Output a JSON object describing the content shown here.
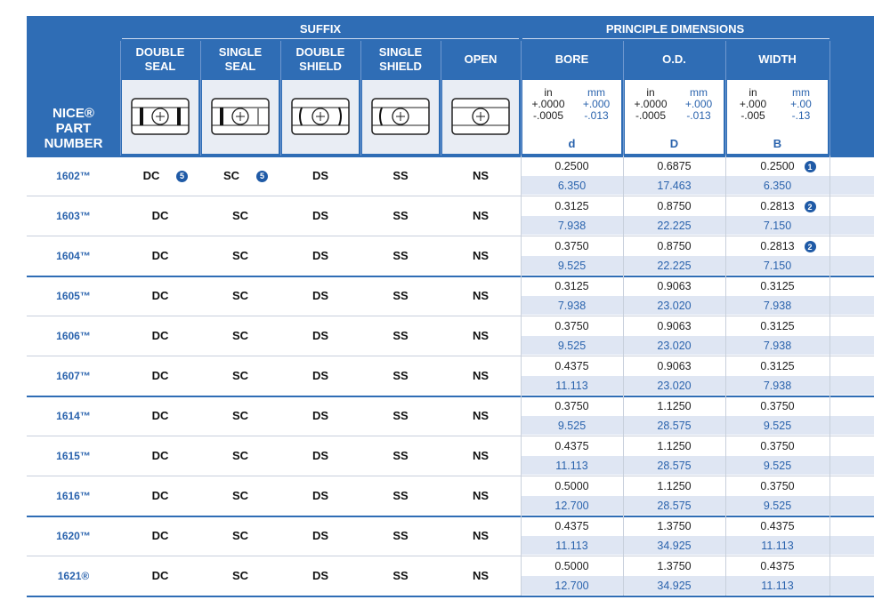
{
  "header": {
    "part_number_label": [
      "NICE®",
      "PART",
      "NUMBER"
    ],
    "suffix_group": "SUFFIX",
    "dimensions_group": "PRINCIPLE DIMENSIONS",
    "suffix_columns": [
      [
        "DOUBLE",
        "SEAL"
      ],
      [
        "SINGLE",
        "SEAL"
      ],
      [
        "DOUBLE",
        "SHIELD"
      ],
      [
        "SINGLE",
        "SHIELD"
      ],
      [
        "OPEN"
      ]
    ],
    "dimension_columns": [
      {
        "name": "BORE",
        "in": [
          "in",
          "+.0000",
          "-.0005"
        ],
        "mm": [
          "mm",
          "+.000",
          "-.013"
        ],
        "symbol": "d"
      },
      {
        "name": "O.D.",
        "in": [
          "in",
          "+.0000",
          "-.0005"
        ],
        "mm": [
          "mm",
          "+.000",
          "-.013"
        ],
        "symbol": "D"
      },
      {
        "name": "WIDTH",
        "in": [
          "in",
          "+.000",
          "-.005"
        ],
        "mm": [
          "mm",
          "+.00",
          "-.13"
        ],
        "symbol": "B"
      }
    ]
  },
  "rows": [
    {
      "part": "1602™",
      "suffixes": [
        "DC",
        "SC",
        "DS",
        "SS",
        "NS"
      ],
      "suffix_notes": [
        "5",
        "5",
        null,
        null,
        null
      ],
      "bore": [
        "0.2500",
        "6.350"
      ],
      "od": [
        "0.6875",
        "17.463"
      ],
      "width": [
        "0.2500",
        "6.350"
      ],
      "width_note": "1"
    },
    {
      "part": "1603™",
      "suffixes": [
        "DC",
        "SC",
        "DS",
        "SS",
        "NS"
      ],
      "bore": [
        "0.3125",
        "7.938"
      ],
      "od": [
        "0.8750",
        "22.225"
      ],
      "width": [
        "0.2813",
        "7.150"
      ],
      "width_note": "2"
    },
    {
      "part": "1604™",
      "suffixes": [
        "DC",
        "SC",
        "DS",
        "SS",
        "NS"
      ],
      "bore": [
        "0.3750",
        "9.525"
      ],
      "od": [
        "0.8750",
        "22.225"
      ],
      "width": [
        "0.2813",
        "7.150"
      ],
      "width_note": "2"
    },
    {
      "part": "1605™",
      "suffixes": [
        "DC",
        "SC",
        "DS",
        "SS",
        "NS"
      ],
      "bore": [
        "0.3125",
        "7.938"
      ],
      "od": [
        "0.9063",
        "23.020"
      ],
      "width": [
        "0.3125",
        "7.938"
      ]
    },
    {
      "part": "1606™",
      "suffixes": [
        "DC",
        "SC",
        "DS",
        "SS",
        "NS"
      ],
      "bore": [
        "0.3750",
        "9.525"
      ],
      "od": [
        "0.9063",
        "23.020"
      ],
      "width": [
        "0.3125",
        "7.938"
      ]
    },
    {
      "part": "1607™",
      "suffixes": [
        "DC",
        "SC",
        "DS",
        "SS",
        "NS"
      ],
      "bore": [
        "0.4375",
        "11.113"
      ],
      "od": [
        "0.9063",
        "23.020"
      ],
      "width": [
        "0.3125",
        "7.938"
      ]
    },
    {
      "part": "1614™",
      "suffixes": [
        "DC",
        "SC",
        "DS",
        "SS",
        "NS"
      ],
      "bore": [
        "0.3750",
        "9.525"
      ],
      "od": [
        "1.1250",
        "28.575"
      ],
      "width": [
        "0.3750",
        "9.525"
      ]
    },
    {
      "part": "1615™",
      "suffixes": [
        "DC",
        "SC",
        "DS",
        "SS",
        "NS"
      ],
      "bore": [
        "0.4375",
        "11.113"
      ],
      "od": [
        "1.1250",
        "28.575"
      ],
      "width": [
        "0.3750",
        "9.525"
      ]
    },
    {
      "part": "1616™",
      "suffixes": [
        "DC",
        "SC",
        "DS",
        "SS",
        "NS"
      ],
      "bore": [
        "0.5000",
        "12.700"
      ],
      "od": [
        "1.1250",
        "28.575"
      ],
      "width": [
        "0.3750",
        "9.525"
      ]
    },
    {
      "part": "1620™",
      "suffixes": [
        "DC",
        "SC",
        "DS",
        "SS",
        "NS"
      ],
      "bore": [
        "0.4375",
        "11.113"
      ],
      "od": [
        "1.3750",
        "34.925"
      ],
      "width": [
        "0.4375",
        "11.113"
      ]
    },
    {
      "part": "1621®",
      "suffixes": [
        "DC",
        "SC",
        "DS",
        "SS",
        "NS"
      ],
      "bore": [
        "0.5000",
        "12.700"
      ],
      "od": [
        "1.3750",
        "34.925"
      ],
      "width": [
        "0.4375",
        "11.113"
      ]
    }
  ]
}
